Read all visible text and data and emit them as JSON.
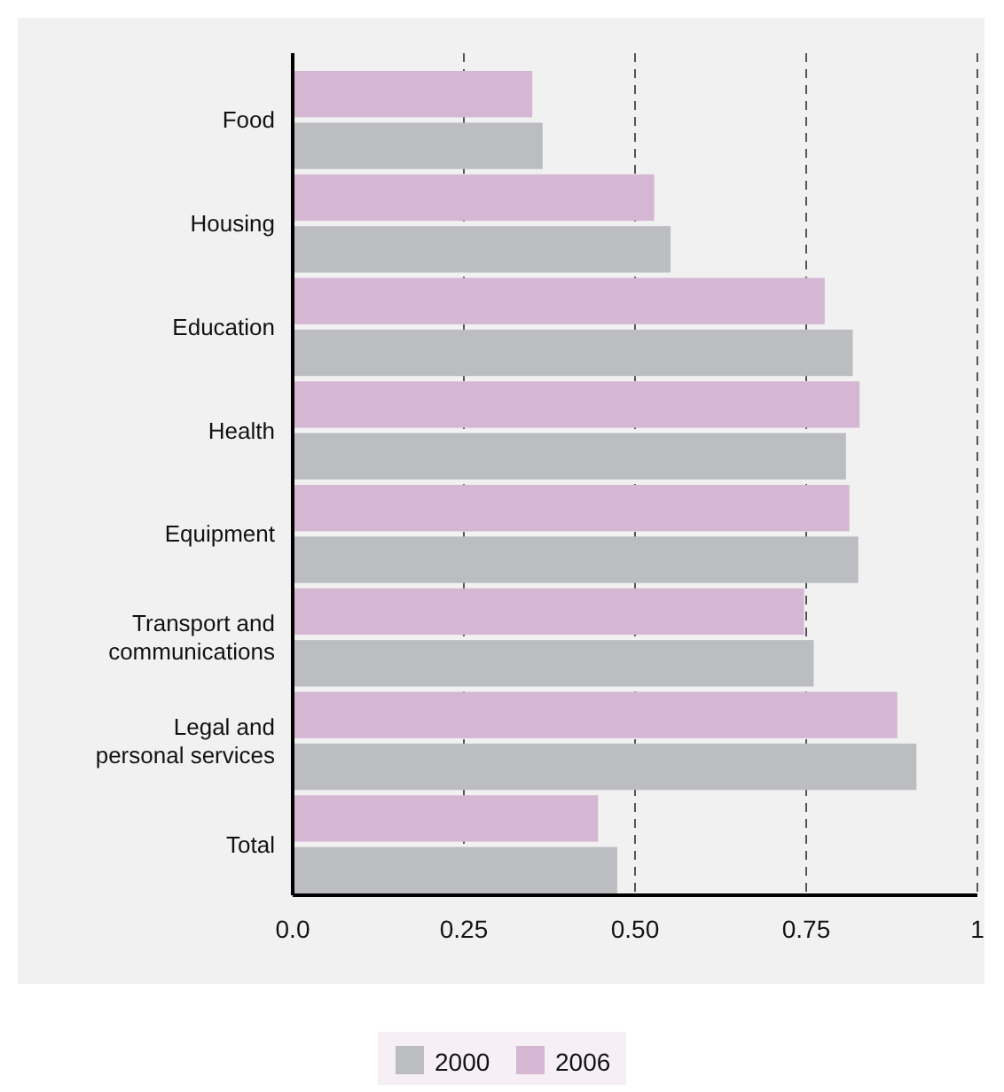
{
  "chart_data": {
    "type": "bar",
    "orientation": "horizontal",
    "categories": [
      "Food",
      "Housing",
      "Education",
      "Health",
      "Equipment",
      "Transport and communications",
      "Legal and personal services",
      "Total"
    ],
    "series": [
      {
        "name": "2000",
        "color": "#bcbdc0",
        "values": [
          0.365,
          0.552,
          0.818,
          0.808,
          0.826,
          0.761,
          0.911,
          0.474
        ]
      },
      {
        "name": "2006",
        "color": "#d5b7d4",
        "values": [
          0.35,
          0.528,
          0.777,
          0.828,
          0.813,
          0.747,
          0.883,
          0.446
        ]
      }
    ],
    "xlim": [
      0,
      1
    ],
    "xticks": [
      {
        "value": 0,
        "label": "0.0"
      },
      0.25,
      {
        "value": 0.5,
        "label": "0.50"
      },
      0.75,
      1
    ],
    "grid": "x",
    "legend": "bottom"
  }
}
